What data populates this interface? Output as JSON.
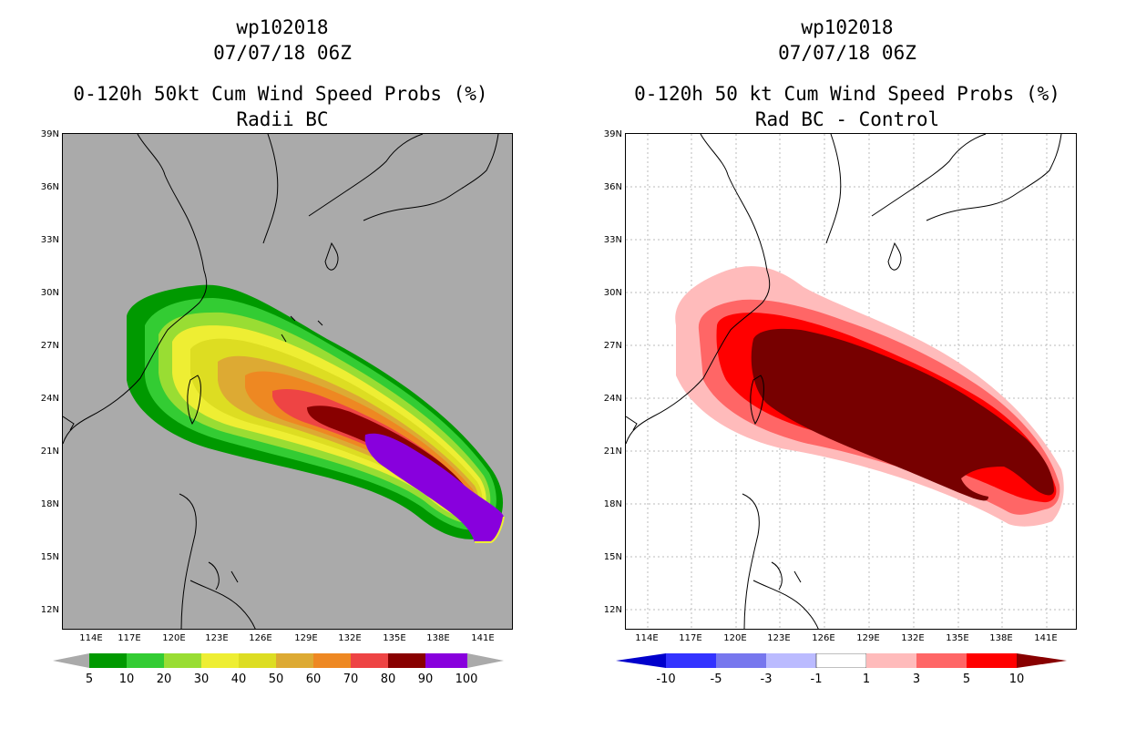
{
  "left_panel": {
    "title_line1": "wp102018",
    "title_line2": "07/07/18 06Z",
    "title_line3": "0-120h 50kt Cum Wind Speed Probs (%)",
    "title_line4": "Radii BC",
    "background_color": "#aaaaaa",
    "colorbar_labels": [
      "5",
      "10",
      "20",
      "30",
      "40",
      "50",
      "60",
      "70",
      "80",
      "90",
      "100"
    ],
    "colorbar_colors": [
      "#009900",
      "#33cc33",
      "#99dd33",
      "#eeee33",
      "#dddd22",
      "#ddaa33",
      "#ee8822",
      "#ee4444",
      "#880000",
      "#8800dd"
    ]
  },
  "right_panel": {
    "title_line1": "wp102018",
    "title_line2": "07/07/18 06Z",
    "title_line3": "0-120h 50 kt Cum Wind Speed Probs (%)",
    "title_line4": "Rad BC - Control",
    "background_color": "#ffffff",
    "colorbar_labels": [
      "-10",
      "-5",
      "-3",
      "-1",
      "1",
      "3",
      "5",
      "10"
    ],
    "colorbar_colors": [
      "#0000cc",
      "#3333ff",
      "#7777ee",
      "#bbbbff",
      "#ffffff",
      "#ffbbbb",
      "#ff6666",
      "#ff0000",
      "#880000"
    ]
  },
  "lat_labels": [
    "39N",
    "36N",
    "33N",
    "30N",
    "27N",
    "24N",
    "21N",
    "18N",
    "15N",
    "12N"
  ],
  "lon_labels": [
    "114E",
    "117E",
    "120E",
    "123E",
    "126E",
    "129E",
    "132E",
    "135E",
    "138E",
    "141E"
  ]
}
